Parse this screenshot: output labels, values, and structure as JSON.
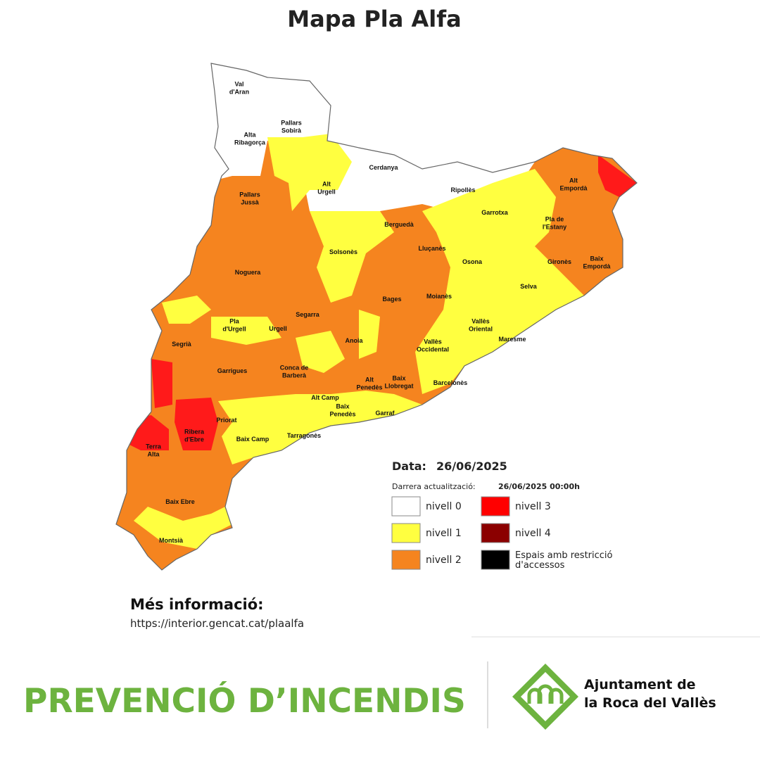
{
  "map": {
    "title": "Mapa Pla Alfa",
    "regions": [
      [
        "Val",
        "d'Aran"
      ],
      [
        "Pallars",
        "Sobirà"
      ],
      [
        "Alta",
        "Ribagorça"
      ],
      [
        "Cerdanya"
      ],
      [
        "Alt",
        "Urgell"
      ],
      [
        "Ripollès"
      ],
      [
        "Pallars",
        "Jussà"
      ],
      [
        "Alt",
        "Empordà"
      ],
      [
        "Berguedà"
      ],
      [
        "Garrotxa"
      ],
      [
        "Pla de",
        "l'Estany"
      ],
      [
        "Solsonès"
      ],
      [
        "Lluçanès"
      ],
      [
        "Osona"
      ],
      [
        "Gironès"
      ],
      [
        "Baix",
        "Empordà"
      ],
      [
        "Noguera"
      ],
      [
        "Selva"
      ],
      [
        "Bages"
      ],
      [
        "Moianès"
      ],
      [
        "Segarra"
      ],
      [
        "Pla",
        "d'Urgell"
      ],
      [
        "Urgell"
      ],
      [
        "Vallès",
        "Oriental"
      ],
      [
        "Maresme"
      ],
      [
        "Segrià"
      ],
      [
        "Anoia"
      ],
      [
        "Vallès",
        "Occidental"
      ],
      [
        "Garrigues"
      ],
      [
        "Conca de",
        "Barberà"
      ],
      [
        "Alt",
        "Penedès"
      ],
      [
        "Baix",
        "Llobregat"
      ],
      [
        "Barcelonès"
      ],
      [
        "Alt Camp"
      ],
      [
        "Baix",
        "Penedès"
      ],
      [
        "Garraf"
      ],
      [
        "Priorat"
      ],
      [
        "Ribera",
        "d'Ebre"
      ],
      [
        "Baix Camp"
      ],
      [
        "Tarragonès"
      ],
      [
        "Terra",
        "Alta"
      ],
      [
        "Baix Ebre"
      ],
      [
        "Montsià"
      ]
    ],
    "date_label": "Data:",
    "date": "26/06/2025",
    "update_label": "Darrera actualització:",
    "update": "26/06/2025 00:00h",
    "legend": [
      [
        "nivell 0"
      ],
      [
        "nivell 1"
      ],
      [
        "nivell 2"
      ],
      [
        "nivell 3"
      ],
      [
        "nivell 4"
      ],
      [
        "Espais amb restricció",
        "d'accessos"
      ]
    ]
  },
  "info": {
    "heading": "Més informació:",
    "url": "https://interior.gencat.cat/plaalfa"
  },
  "footer": {
    "title": "PREVENCIÓ D’INCENDIS",
    "org": [
      "Ajuntament de",
      "la Roca del Vallès"
    ]
  }
}
